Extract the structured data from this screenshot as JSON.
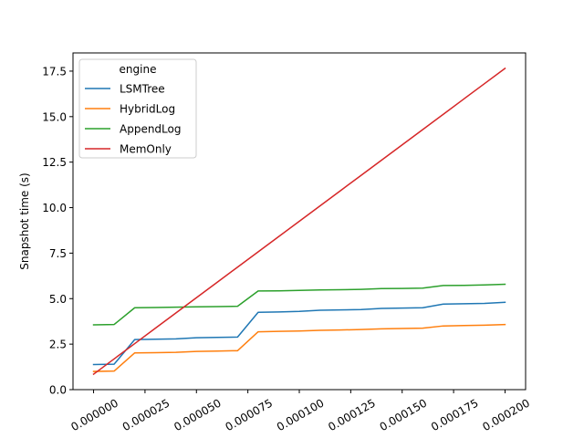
{
  "chart_data": {
    "type": "line",
    "title": "",
    "xlabel": "",
    "ylabel": "Snapshot time (s)",
    "xlim": [
      -1e-05,
      0.00021
    ],
    "ylim": [
      0,
      18.5
    ],
    "grid": false,
    "legend_title": "engine",
    "legend_position": "top-left",
    "x_ticks": [
      0.0,
      2.5e-05,
      5e-05,
      7.5e-05,
      0.0001,
      0.000125,
      0.00015,
      0.000175,
      0.0002
    ],
    "x_tick_labels": [
      "0.000000",
      "0.000025",
      "0.000050",
      "0.000075",
      "0.000100",
      "0.000125",
      "0.000150",
      "0.000175",
      "0.000200"
    ],
    "y_ticks": [
      0.0,
      2.5,
      5.0,
      7.5,
      10.0,
      12.5,
      15.0,
      17.5
    ],
    "y_tick_labels": [
      "0.0",
      "2.5",
      "5.0",
      "7.5",
      "10.0",
      "12.5",
      "15.0",
      "17.5"
    ],
    "x": [
      0.0,
      1e-05,
      2e-05,
      3e-05,
      4e-05,
      5e-05,
      6e-05,
      7e-05,
      8e-05,
      9e-05,
      0.0001,
      0.00011,
      0.00012,
      0.00013,
      0.00014,
      0.00015,
      0.00016,
      0.00017,
      0.00018,
      0.00019,
      0.0002
    ],
    "series": [
      {
        "name": "LSMTree",
        "color": "#1f77b4",
        "values": [
          1.38,
          1.4,
          2.75,
          2.77,
          2.79,
          2.85,
          2.87,
          2.89,
          4.25,
          4.27,
          4.3,
          4.36,
          4.38,
          4.4,
          4.46,
          4.48,
          4.5,
          4.7,
          4.72,
          4.74,
          4.8
        ]
      },
      {
        "name": "HybridLog",
        "color": "#ff7f0e",
        "values": [
          1.0,
          1.02,
          2.02,
          2.03,
          2.05,
          2.1,
          2.12,
          2.14,
          3.18,
          3.2,
          3.22,
          3.26,
          3.28,
          3.3,
          3.34,
          3.36,
          3.38,
          3.5,
          3.52,
          3.54,
          3.58
        ]
      },
      {
        "name": "AppendLog",
        "color": "#2ca02c",
        "values": [
          3.56,
          3.58,
          4.5,
          4.51,
          4.53,
          4.55,
          4.56,
          4.58,
          5.42,
          5.43,
          5.45,
          5.48,
          5.49,
          5.51,
          5.55,
          5.56,
          5.58,
          5.72,
          5.73,
          5.75,
          5.79
        ]
      },
      {
        "name": "MemOnly",
        "color": "#d62728",
        "values": [
          0.85,
          1.69,
          2.53,
          3.37,
          4.21,
          5.05,
          5.89,
          6.73,
          7.57,
          8.41,
          9.25,
          10.09,
          10.93,
          11.77,
          12.61,
          13.45,
          14.29,
          15.13,
          15.97,
          16.81,
          17.65
        ]
      }
    ]
  }
}
